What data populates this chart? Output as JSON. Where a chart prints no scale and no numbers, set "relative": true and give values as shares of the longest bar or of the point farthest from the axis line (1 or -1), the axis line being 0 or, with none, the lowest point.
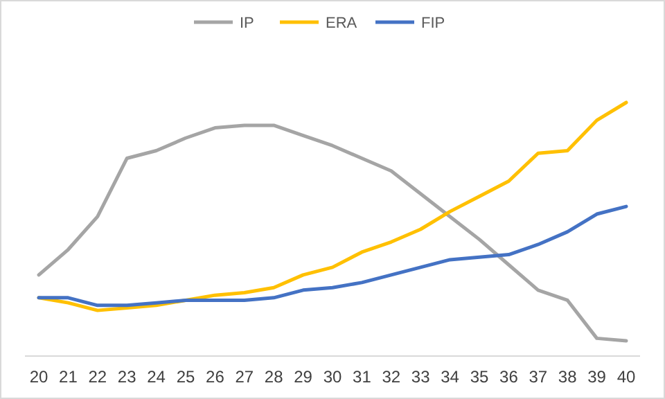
{
  "chart_data": {
    "type": "line",
    "relative": true,
    "legend": "top",
    "marker": "none",
    "line_style": "solid",
    "categories": [
      "20",
      "21",
      "22",
      "23",
      "24",
      "25",
      "26",
      "27",
      "28",
      "29",
      "30",
      "31",
      "32",
      "33",
      "34",
      "35",
      "36",
      "37",
      "38",
      "39",
      "40"
    ],
    "series": [
      {
        "name": "IP",
        "color": "#a5a5a5",
        "values": [
          0.32,
          0.42,
          0.55,
          0.78,
          0.81,
          0.86,
          0.9,
          0.91,
          0.91,
          0.87,
          0.83,
          0.78,
          0.73,
          0.64,
          0.55,
          0.46,
          0.36,
          0.26,
          0.22,
          0.07,
          0.06
        ]
      },
      {
        "name": "ERA",
        "color": "#ffc000",
        "values": [
          0.23,
          0.21,
          0.18,
          0.19,
          0.2,
          0.22,
          0.24,
          0.25,
          0.27,
          0.32,
          0.35,
          0.41,
          0.45,
          0.5,
          0.57,
          0.63,
          0.69,
          0.8,
          0.81,
          0.93,
          1
        ]
      },
      {
        "name": "FIP",
        "color": "#4472c4",
        "values": [
          0.23,
          0.23,
          0.2,
          0.2,
          0.21,
          0.22,
          0.22,
          0.22,
          0.23,
          0.26,
          0.27,
          0.29,
          0.32,
          0.35,
          0.38,
          0.39,
          0.4,
          0.44,
          0.49,
          0.56,
          0.59
        ]
      }
    ]
  }
}
